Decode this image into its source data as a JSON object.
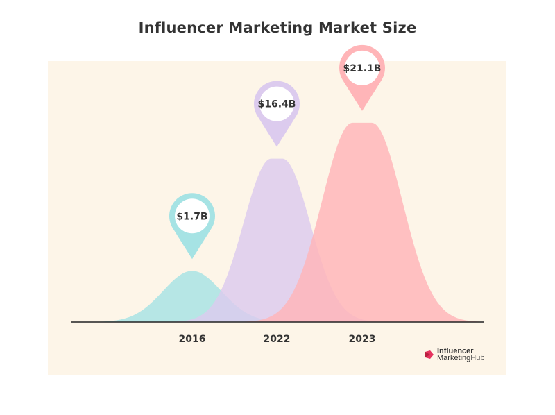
{
  "chart_data": {
    "type": "area",
    "title": "Influencer Marketing Market Size",
    "categories": [
      "2016",
      "2022",
      "2023"
    ],
    "values": [
      1.7,
      16.4,
      21.1
    ],
    "value_labels": [
      "$1.7B",
      "$16.4B",
      "$21.1B"
    ],
    "unit": "$B",
    "series_colors": [
      "#a6e3e4",
      "#dccbee",
      "#ffb5b8"
    ],
    "pin_colors": [
      "#a6e3e4",
      "#dccbee",
      "#ffb5b8"
    ],
    "grid": false,
    "legend": "none"
  },
  "logo": {
    "line1": "Influencer",
    "line2a": "Marketing",
    "line2b": "Hub",
    "accent": "#e5335f"
  },
  "colors": {
    "panel_background": "#fdf5e8",
    "baseline": "#222222",
    "text": "#333333"
  }
}
